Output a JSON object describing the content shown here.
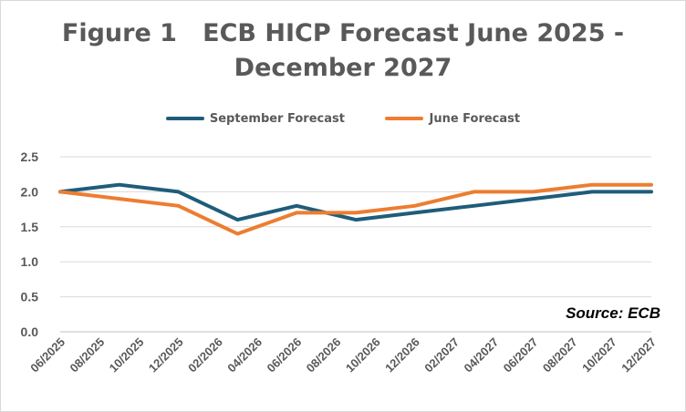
{
  "chart_data": {
    "type": "line",
    "title_lines": [
      "Figure 1   ECB HICP Forecast June 2025 -",
      "December 2027"
    ],
    "xlabel": "",
    "ylabel": "",
    "source": "Source: ECB",
    "categories": [
      "06/2025",
      "08/2025",
      "10/2025",
      "12/2025",
      "02/2026",
      "04/2026",
      "06/2026",
      "08/2026",
      "10/2026",
      "12/2026",
      "02/2027",
      "04/2027",
      "06/2027",
      "08/2027",
      "10/2027",
      "12/2027"
    ],
    "x": [
      "06/2025",
      "09/2025",
      "12/2025",
      "03/2026",
      "06/2026",
      "09/2026",
      "12/2026",
      "03/2027",
      "06/2027",
      "09/2027",
      "12/2027"
    ],
    "ylim": [
      0,
      2.5
    ],
    "yticks": [
      "2.5",
      "2.0",
      "1.5",
      "1.0",
      "0.5",
      "0.0"
    ],
    "ytick_values": [
      2.5,
      2.0,
      1.5,
      1.0,
      0.5,
      0.0
    ],
    "grid": "horizontal",
    "legend_position": "top",
    "series": [
      {
        "name": "September Forecast",
        "color": "#1f5c7a",
        "values": [
          2.0,
          2.1,
          2.0,
          1.6,
          1.8,
          1.6,
          1.7,
          1.8,
          1.9,
          2.0,
          2.0
        ]
      },
      {
        "name": "June Forecast",
        "color": "#ed7d31",
        "values": [
          2.0,
          1.9,
          1.8,
          1.4,
          1.7,
          1.7,
          1.8,
          2.0,
          2.0,
          2.1,
          2.1
        ]
      }
    ]
  }
}
